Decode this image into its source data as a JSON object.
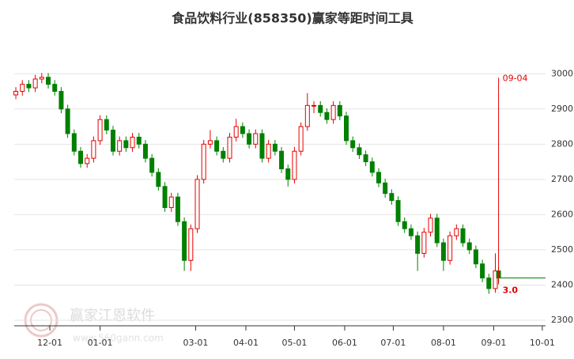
{
  "chart_data": {
    "type": "candlestick",
    "title": "食品饮料行业(858350)赢家等距时间工具",
    "x": [
      "11-10",
      "11-14",
      "11-18",
      "11-22",
      "11-26",
      "11-30",
      "12-04",
      "12-08",
      "12-12",
      "12-16",
      "12-20",
      "12-24",
      "12-28",
      "01-01",
      "01-05",
      "01-09",
      "01-13",
      "01-17",
      "01-21",
      "01-25",
      "01-29",
      "02-02",
      "02-06",
      "02-10",
      "02-14",
      "02-18",
      "02-22",
      "02-26",
      "03-02",
      "03-06",
      "03-10",
      "03-14",
      "03-18",
      "03-22",
      "03-26",
      "03-30",
      "04-03",
      "04-07",
      "04-11",
      "04-15",
      "04-19",
      "04-23",
      "04-27",
      "05-01",
      "05-05",
      "05-09",
      "05-13",
      "05-17",
      "05-21",
      "05-25",
      "05-29",
      "06-02",
      "06-06",
      "06-10",
      "06-14",
      "06-18",
      "06-22",
      "06-26",
      "06-30",
      "07-04",
      "07-08",
      "07-12",
      "07-16",
      "07-20",
      "07-24",
      "07-28",
      "08-01",
      "08-05",
      "08-09",
      "08-13",
      "08-17",
      "08-21",
      "08-25",
      "08-29",
      "09-02",
      "09-04"
    ],
    "open": [
      2940,
      2950,
      2970,
      2960,
      2985,
      2990,
      2970,
      2950,
      2900,
      2830,
      2780,
      2745,
      2760,
      2810,
      2870,
      2840,
      2780,
      2810,
      2790,
      2820,
      2800,
      2760,
      2720,
      2680,
      2620,
      2650,
      2580,
      2470,
      2560,
      2700,
      2800,
      2810,
      2780,
      2760,
      2820,
      2850,
      2830,
      2800,
      2830,
      2760,
      2800,
      2780,
      2730,
      2700,
      2780,
      2850,
      2910,
      2910,
      2890,
      2870,
      2910,
      2880,
      2810,
      2790,
      2770,
      2750,
      2720,
      2690,
      2660,
      2640,
      2580,
      2560,
      2540,
      2490,
      2550,
      2590,
      2520,
      2470,
      2540,
      2560,
      2520,
      2500,
      2460,
      2420,
      2390,
      2440
    ],
    "high": [
      2962,
      2982,
      2982,
      2997,
      3002,
      3002,
      2982,
      2962,
      2912,
      2842,
      2792,
      2772,
      2822,
      2882,
      2882,
      2852,
      2822,
      2822,
      2832,
      2832,
      2812,
      2772,
      2732,
      2692,
      2662,
      2662,
      2592,
      2572,
      2712,
      2812,
      2840,
      2822,
      2792,
      2832,
      2872,
      2862,
      2842,
      2842,
      2842,
      2812,
      2812,
      2792,
      2742,
      2792,
      2862,
      2945,
      2922,
      2922,
      2902,
      2922,
      2922,
      2892,
      2822,
      2802,
      2782,
      2762,
      2732,
      2702,
      2672,
      2652,
      2592,
      2572,
      2552,
      2562,
      2602,
      2602,
      2532,
      2552,
      2572,
      2572,
      2532,
      2512,
      2472,
      2432,
      2490,
      2452
    ],
    "low": [
      2928,
      2938,
      2948,
      2948,
      2973,
      2958,
      2938,
      2888,
      2818,
      2768,
      2733,
      2733,
      2748,
      2798,
      2828,
      2768,
      2768,
      2778,
      2778,
      2788,
      2748,
      2708,
      2668,
      2608,
      2608,
      2568,
      2440,
      2440,
      2548,
      2688,
      2788,
      2768,
      2748,
      2748,
      2808,
      2818,
      2788,
      2788,
      2748,
      2748,
      2768,
      2718,
      2680,
      2688,
      2768,
      2838,
      2888,
      2878,
      2858,
      2858,
      2868,
      2798,
      2778,
      2758,
      2738,
      2708,
      2678,
      2648,
      2628,
      2568,
      2548,
      2528,
      2440,
      2478,
      2538,
      2508,
      2440,
      2458,
      2528,
      2508,
      2488,
      2448,
      2408,
      2375,
      2378,
      2408
    ],
    "close": [
      2950,
      2970,
      2960,
      2985,
      2990,
      2970,
      2950,
      2900,
      2830,
      2780,
      2745,
      2760,
      2810,
      2870,
      2840,
      2780,
      2810,
      2790,
      2820,
      2800,
      2760,
      2720,
      2680,
      2620,
      2650,
      2580,
      2470,
      2560,
      2700,
      2800,
      2810,
      2780,
      2760,
      2820,
      2850,
      2830,
      2800,
      2830,
      2760,
      2800,
      2780,
      2730,
      2700,
      2780,
      2850,
      2910,
      2910,
      2890,
      2870,
      2910,
      2880,
      2810,
      2790,
      2770,
      2750,
      2720,
      2690,
      2660,
      2640,
      2580,
      2560,
      2540,
      2490,
      2550,
      2590,
      2520,
      2470,
      2540,
      2560,
      2520,
      2500,
      2460,
      2420,
      2390,
      2440,
      2420
    ],
    "up_color": "#e60000",
    "down_color": "#008000",
    "xlim": [
      "11-09",
      "10-03"
    ],
    "xticks": [
      "12-01",
      "01-01",
      "03-01",
      "04-01",
      "05-01",
      "06-01",
      "07-01",
      "08-01",
      "09-01",
      "10-01"
    ],
    "ylim": [
      2300,
      3050
    ],
    "yticks": [
      2300,
      2400,
      2500,
      2600,
      2700,
      2800,
      2900,
      3000
    ],
    "grid": true,
    "marker": {
      "x": "09-04",
      "label": "09-04",
      "note": "3.0",
      "color": "#e60000"
    },
    "watermark": {
      "name": "赢家江恩软件",
      "url": "www.560gann.com"
    }
  }
}
